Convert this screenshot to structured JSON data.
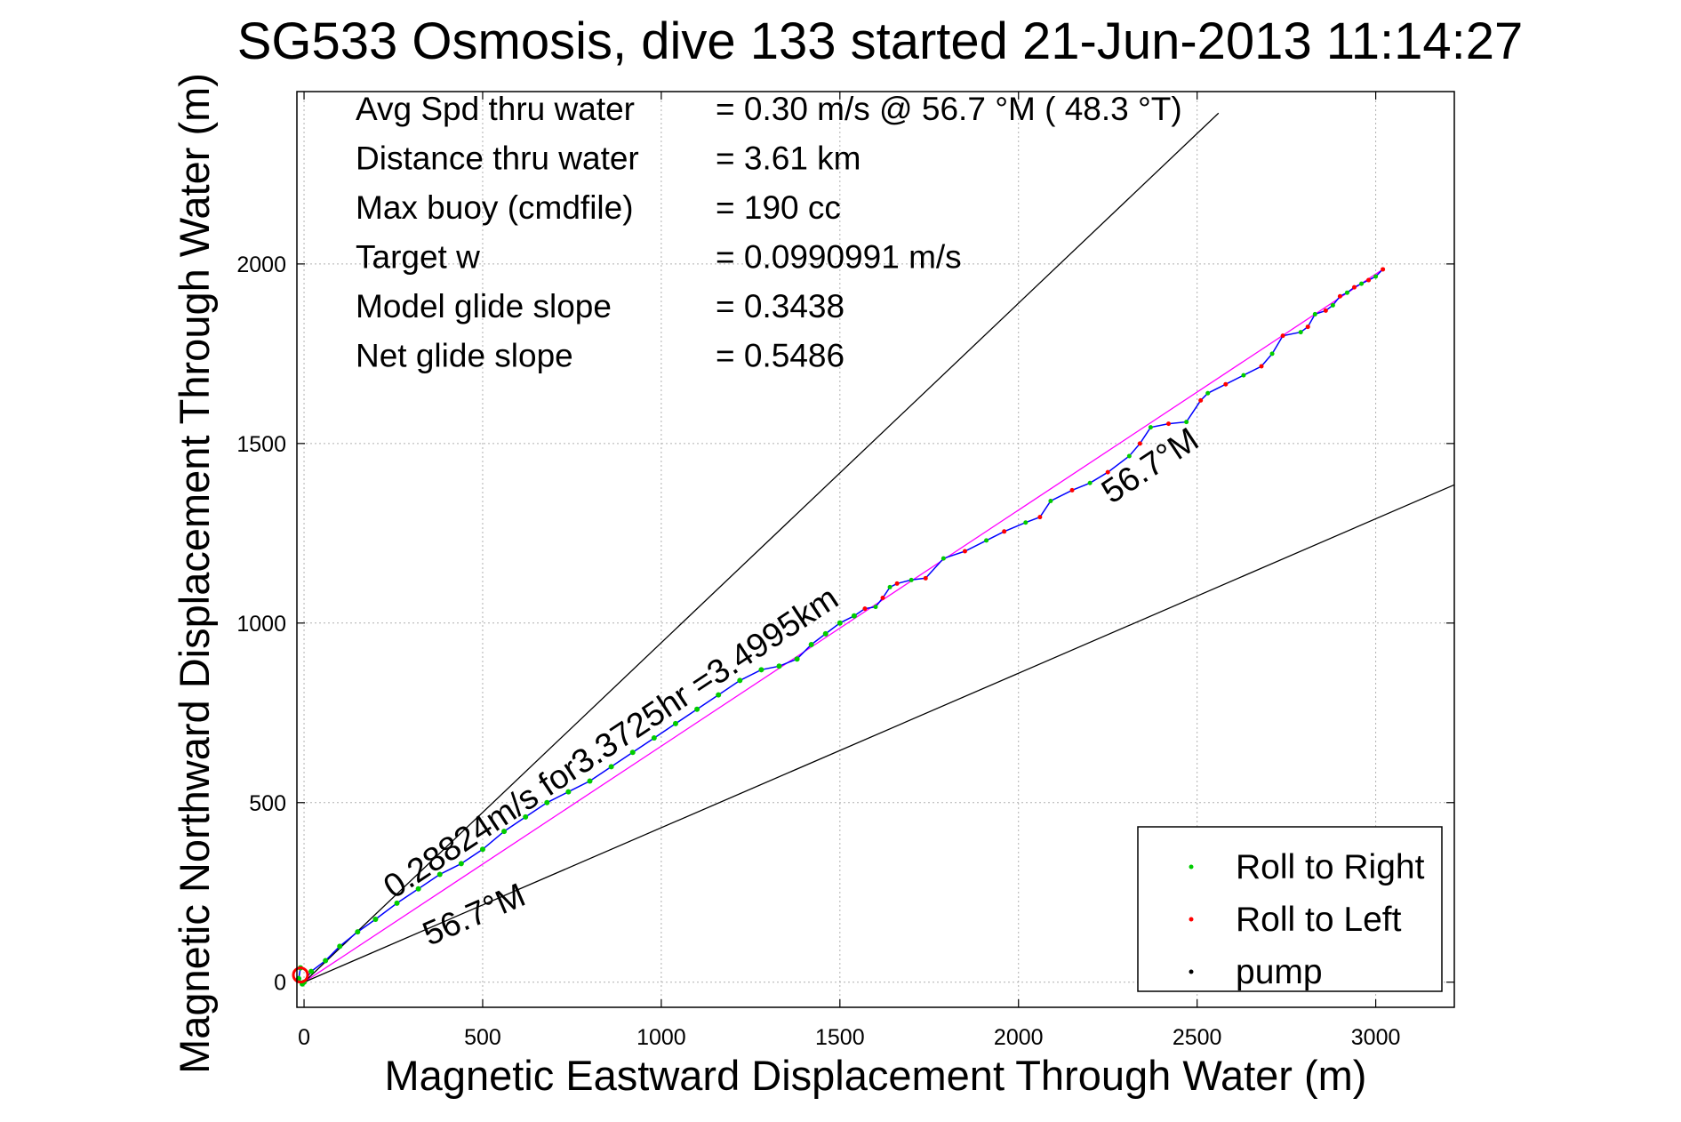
{
  "chart_data": {
    "type": "scatter",
    "title": "SG533 Osmosis, dive 133 started 21-Jun-2013 11:14:27",
    "xlabel": "Magnetic Eastward Displacement Through Water (m)",
    "ylabel": "Magnetic Northward Displacement Through Water (m)",
    "xlim": [
      -20,
      3220
    ],
    "ylim": [
      -70,
      2480
    ],
    "xticks": [
      0,
      500,
      1000,
      1500,
      2000,
      2500,
      3000
    ],
    "yticks": [
      0,
      500,
      1000,
      1500,
      2000
    ],
    "grid": true,
    "stats": [
      {
        "label": "Avg Spd thru water",
        "value": "=  0.30 m/s @  56.7 °M ( 48.3 °T)"
      },
      {
        "label": "Distance thru water",
        "value": "=  3.61 km"
      },
      {
        "label": "Max buoy (cmdfile)",
        "value": "= 190 cc"
      },
      {
        "label": "Target w",
        "value": "= 0.0990991 m/s"
      },
      {
        "label": "Model glide slope",
        "value": "= 0.3438"
      },
      {
        "label": "Net glide slope",
        "value": "= 0.5486"
      }
    ],
    "legend": {
      "position": "bottom-right",
      "entries": [
        {
          "label": "Roll to Right",
          "color": "#00cc00"
        },
        {
          "label": "Roll to Left",
          "color": "#ff0000"
        },
        {
          "label": "pump",
          "color": "#000000"
        }
      ]
    },
    "annotations": [
      {
        "text": "0.28824m/s for3.3725hr =3.4995km",
        "x": 250,
        "y": 230
      },
      {
        "text": "56.7°M",
        "x": 350,
        "y": 100
      },
      {
        "text": "56.7°M",
        "x": 2260,
        "y": 1330
      }
    ],
    "reference_lines": [
      {
        "name": "heading-line",
        "color": "#ff00ff",
        "x": [
          0,
          3020
        ],
        "y": [
          0,
          1985
        ]
      },
      {
        "name": "heading-upper-bound",
        "color": "#000000",
        "x": [
          0,
          2560
        ],
        "y": [
          0,
          2420
        ]
      },
      {
        "name": "heading-lower-bound",
        "color": "#000000",
        "x": [
          0,
          3220
        ],
        "y": [
          0,
          1385
        ]
      }
    ],
    "series": [
      {
        "color": "#0000ff",
        "x": [
          -10,
          -15,
          -5,
          0,
          20,
          60,
          100,
          150,
          200,
          260,
          320,
          380,
          440,
          500,
          560,
          620,
          680,
          740,
          800,
          860,
          920,
          980,
          1040,
          1100,
          1160,
          1220,
          1280,
          1330,
          1380,
          1420,
          1460,
          1500,
          1540,
          1570,
          1600,
          1620,
          1640,
          1660,
          1700,
          1740,
          1790,
          1850,
          1910,
          1960,
          2020,
          2060,
          2090,
          2150,
          2200,
          2250,
          2310,
          2340,
          2370,
          2420,
          2470,
          2510,
          2530,
          2580,
          2630,
          2680,
          2710,
          2740,
          2790,
          2810,
          2830,
          2860,
          2880,
          2900,
          2920,
          2940,
          2960,
          2980,
          3000,
          3020
        ],
        "y": [
          40,
          10,
          -5,
          0,
          30,
          60,
          100,
          140,
          175,
          220,
          260,
          300,
          330,
          370,
          420,
          460,
          500,
          530,
          560,
          600,
          640,
          680,
          720,
          760,
          800,
          840,
          870,
          880,
          900,
          940,
          970,
          1000,
          1020,
          1040,
          1045,
          1070,
          1100,
          1110,
          1120,
          1125,
          1180,
          1200,
          1230,
          1255,
          1280,
          1295,
          1340,
          1370,
          1390,
          1420,
          1465,
          1500,
          1545,
          1555,
          1560,
          1620,
          1640,
          1665,
          1690,
          1715,
          1750,
          1800,
          1810,
          1825,
          1860,
          1870,
          1885,
          1910,
          1920,
          1935,
          1945,
          1955,
          1965,
          1985
        ]
      }
    ]
  }
}
